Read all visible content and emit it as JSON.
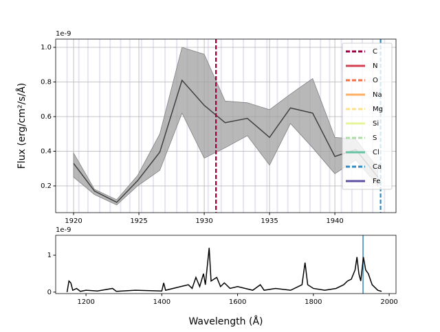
{
  "chart_data": [
    {
      "type": "line",
      "ylabel": "Flux (erg/cm²/s/Å)",
      "offset_text": "1e-9",
      "x": [
        1920,
        1921.6,
        1923.3,
        1924.9,
        1926.6,
        1928.3,
        1930,
        1931.6,
        1933.3,
        1935,
        1936.6,
        1938.3,
        1940,
        1941.6,
        1943.3
      ],
      "values": [
        0.33,
        0.17,
        0.105,
        0.23,
        0.395,
        0.81,
        0.665,
        0.565,
        0.59,
        0.48,
        0.65,
        0.62,
        0.37,
        0.41,
        0.25
      ],
      "upper": [
        0.39,
        0.18,
        0.12,
        0.26,
        0.5,
        1.0,
        0.96,
        0.69,
        0.68,
        0.64,
        0.73,
        0.82,
        0.48,
        0.47,
        0.3
      ],
      "lower": [
        0.25,
        0.15,
        0.09,
        0.2,
        0.29,
        0.62,
        0.36,
        0.42,
        0.49,
        0.32,
        0.56,
        0.42,
        0.27,
        0.35,
        0.2
      ],
      "color": "#3f3f3f",
      "band_color": "#a0a0a0",
      "xlim": [
        1918.63,
        1944.68
      ],
      "ylim": [
        0.0455,
        1.0475
      ],
      "xticks": [
        1920,
        1925,
        1930,
        1935,
        1940
      ],
      "yticks": [
        0.2,
        0.4,
        0.6,
        0.8,
        {
          "value": 1.0,
          "label": "1.0"
        }
      ],
      "grid": true,
      "legend": "upper right",
      "elements": [
        {
          "name": "C",
          "color": "#9e0142",
          "dashed": true,
          "lines": [
            1930.9
          ]
        },
        {
          "name": "N",
          "color": "#d53e4f",
          "dashed": false
        },
        {
          "name": "O",
          "color": "#f46d43",
          "dashed": true
        },
        {
          "name": "Na",
          "color": "#fdae61",
          "dashed": false
        },
        {
          "name": "Mg",
          "color": "#fee08b",
          "dashed": true
        },
        {
          "name": "Si",
          "color": "#e6f598",
          "dashed": false
        },
        {
          "name": "S",
          "color": "#abdda4",
          "dashed": true
        },
        {
          "name": "Cl",
          "color": "#66c2a5",
          "dashed": false
        },
        {
          "name": "Ca",
          "color": "#3288bd",
          "dashed": true,
          "lines": [
            1943.5
          ]
        },
        {
          "name": "Fe",
          "color": "#5e4fa2",
          "dashed": false,
          "lines": [
            1919.5,
            1920.4,
            1921.1,
            1922.0,
            1922.8,
            1923.6,
            1924.3,
            1925.2,
            1926.1,
            1927.0,
            1927.9,
            1928.7,
            1929.5,
            1930.3,
            1931.3,
            1932.2,
            1933.0,
            1933.9,
            1934.8,
            1935.6,
            1936.4,
            1937.3,
            1938.1,
            1938.9,
            1939.6,
            1940.5,
            1941.3,
            1942.1,
            1942.9,
            1943.8
          ]
        }
      ]
    },
    {
      "type": "line",
      "xlabel": "Wavelength (Å)",
      "offset_text": "1e-9",
      "x": [
        1150,
        1155,
        1160,
        1165,
        1175,
        1185,
        1200,
        1230,
        1270,
        1280,
        1330,
        1400,
        1405,
        1410,
        1450,
        1470,
        1480,
        1490,
        1500,
        1510,
        1515,
        1525,
        1530,
        1545,
        1555,
        1565,
        1580,
        1600,
        1640,
        1660,
        1670,
        1700,
        1740,
        1770,
        1778,
        1785,
        1800,
        1830,
        1860,
        1880,
        1890,
        1900,
        1910,
        1915,
        1920,
        1925,
        1932,
        1938,
        1945,
        1955,
        1970,
        1980
      ],
      "values": [
        0,
        0.3,
        0.25,
        0.05,
        0.1,
        0.02,
        0.05,
        0.03,
        0.1,
        0.02,
        0.05,
        0.03,
        0.25,
        0.05,
        0.15,
        0.2,
        0.1,
        0.4,
        0.15,
        0.5,
        0.2,
        1.2,
        0.3,
        0.4,
        0.15,
        0.25,
        0.1,
        0.15,
        0.05,
        0.2,
        0.05,
        0.1,
        0.05,
        0.2,
        0.8,
        0.2,
        0.1,
        0.05,
        0.1,
        0.2,
        0.3,
        0.35,
        0.6,
        0.95,
        0.5,
        0.3,
        0.95,
        0.6,
        0.5,
        0.2,
        0.05,
        0.02
      ],
      "color": "#000000",
      "xlim": [
        1120,
        2018
      ],
      "ylim": [
        -0.04,
        1.54
      ],
      "xticks": [
        1200,
        1400,
        1600,
        1800,
        2000
      ],
      "yticks": [
        0,
        1
      ],
      "markers": [
        {
          "color": "#3288bd",
          "lines": [
            1931
          ]
        }
      ]
    }
  ]
}
